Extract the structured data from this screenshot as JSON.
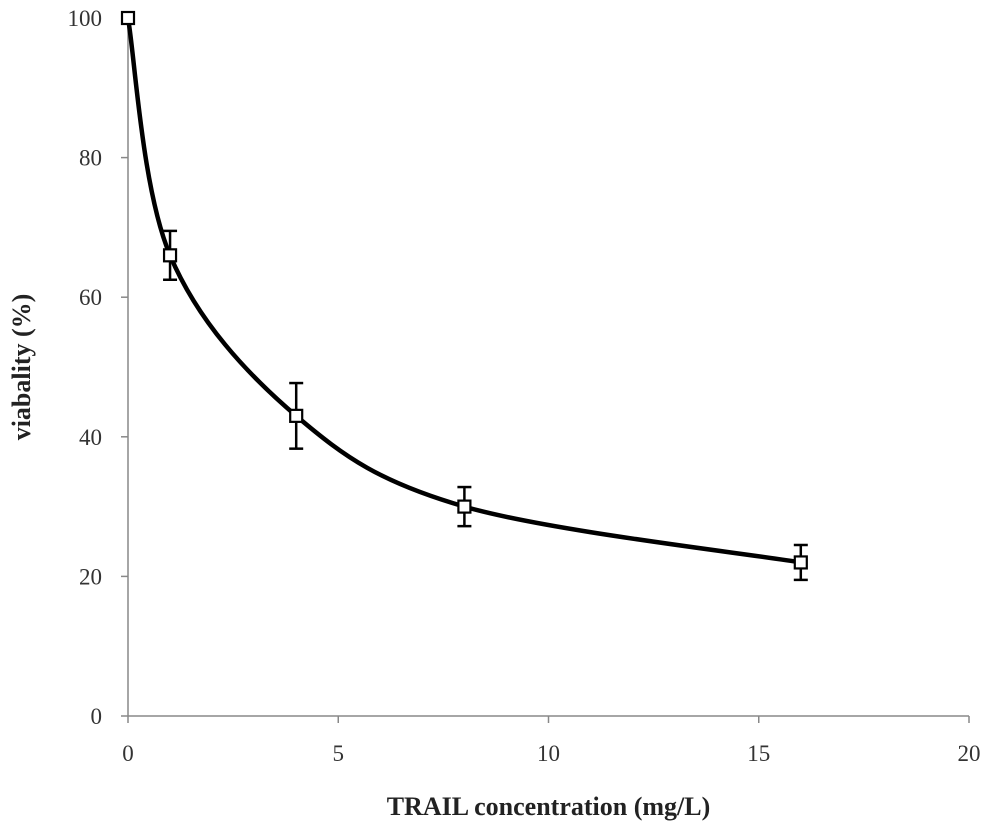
{
  "chart_data": {
    "type": "line",
    "title": "",
    "xlabel": "TRAIL concentration (mg/L)",
    "ylabel": "viabality (%)",
    "xlim": [
      0,
      20
    ],
    "ylim": [
      0,
      100
    ],
    "xticks": [
      0,
      5,
      10,
      15,
      20
    ],
    "yticks": [
      0,
      20,
      40,
      60,
      80,
      100
    ],
    "grid": false,
    "legend": "none",
    "series": [
      {
        "x": [
          0,
          1,
          4,
          8,
          16
        ],
        "y": [
          100,
          66,
          43,
          30,
          22
        ],
        "error": [
          0,
          3.5,
          4.7,
          2.8,
          2.5
        ],
        "marker": "open-square",
        "line": "smoothed",
        "color": "#000000"
      }
    ]
  }
}
